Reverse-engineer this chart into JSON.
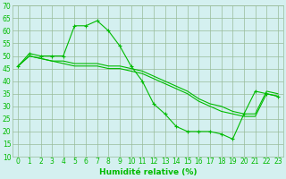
{
  "x": [
    0,
    1,
    2,
    3,
    4,
    5,
    6,
    7,
    8,
    9,
    10,
    11,
    12,
    13,
    14,
    15,
    16,
    17,
    18,
    19,
    20,
    21,
    22,
    23
  ],
  "line1": [
    46,
    51,
    50,
    50,
    50,
    62,
    62,
    64,
    60,
    54,
    46,
    40,
    31,
    27,
    22,
    20,
    20,
    20,
    19,
    17,
    27,
    36,
    35,
    34
  ],
  "line2": [
    46,
    50,
    49,
    48,
    47,
    46,
    46,
    46,
    45,
    45,
    44,
    43,
    41,
    39,
    37,
    35,
    32,
    30,
    28,
    27,
    26,
    26,
    35,
    34
  ],
  "line3": [
    46,
    50,
    49,
    48,
    48,
    47,
    47,
    47,
    46,
    46,
    45,
    44,
    42,
    40,
    38,
    36,
    33,
    31,
    30,
    28,
    27,
    27,
    36,
    35
  ],
  "line_color": "#00bb00",
  "bg_color": "#d4f0f0",
  "grid_color": "#99bb99",
  "xlabel": "Humidité relative (%)",
  "ylim": [
    10,
    70
  ],
  "xlim_min": -0.5,
  "xlim_max": 23.5,
  "yticks": [
    10,
    15,
    20,
    25,
    30,
    35,
    40,
    45,
    50,
    55,
    60,
    65,
    70
  ],
  "xticks": [
    0,
    1,
    2,
    3,
    4,
    5,
    6,
    7,
    8,
    9,
    10,
    11,
    12,
    13,
    14,
    15,
    16,
    17,
    18,
    19,
    20,
    21,
    22,
    23
  ],
  "tick_fontsize": 5.5,
  "xlabel_fontsize": 6.5
}
